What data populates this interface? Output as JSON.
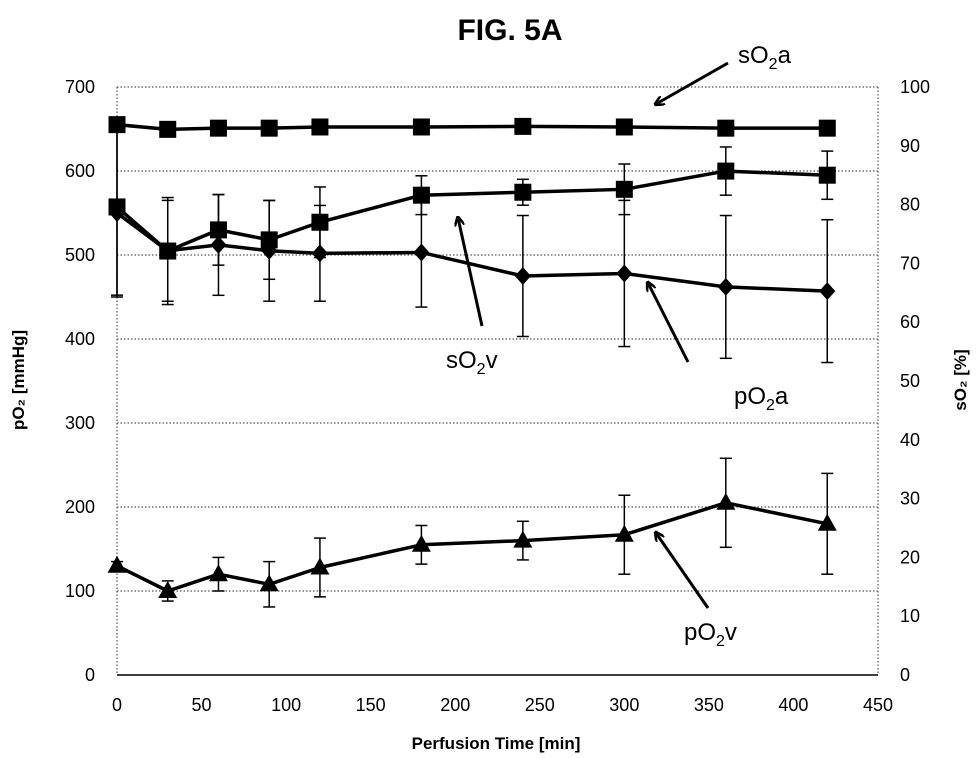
{
  "chart_data": {
    "type": "line",
    "title": "FIG. 5A",
    "xlabel": "Perfusion Time [min]",
    "ylabel_left": "pO₂ [mmHg]",
    "ylabel_right": "sO₂ [%]",
    "xlim": [
      0,
      450
    ],
    "ylim_left": [
      0,
      700
    ],
    "ylim_right": [
      0,
      100
    ],
    "x_ticks": [
      0,
      50,
      100,
      150,
      200,
      250,
      300,
      350,
      400,
      450
    ],
    "y_left_ticks": [
      0,
      100,
      200,
      300,
      400,
      500,
      600,
      700
    ],
    "y_right_ticks": [
      0,
      10,
      20,
      30,
      40,
      50,
      60,
      70,
      80,
      90,
      100
    ],
    "grid": "horizontal-dotted",
    "legend": "none (inline annotations)",
    "series": [
      {
        "name": "sO2a",
        "axis": "right",
        "marker": "square",
        "x": [
          0,
          30,
          60,
          90,
          120,
          180,
          240,
          300,
          360,
          420
        ],
        "y": [
          93.6,
          92.8,
          93.0,
          93.0,
          93.2,
          93.2,
          93.3,
          93.2,
          93.0,
          93.0
        ],
        "err": [
          0.3,
          0.3,
          0.3,
          0.3,
          0.3,
          0.3,
          0.3,
          0.3,
          0.3,
          0.3
        ]
      },
      {
        "name": "sO2v",
        "axis": "right",
        "marker": "square",
        "x": [
          0,
          30,
          60,
          90,
          120,
          180,
          240,
          300,
          360,
          420
        ],
        "y": [
          79.6,
          72.1,
          75.7,
          74.0,
          77.0,
          81.6,
          82.1,
          82.6,
          85.7,
          85.0
        ],
        "err": [
          15.0,
          9.1,
          6.0,
          6.7,
          6.0,
          3.3,
          2.2,
          4.3,
          4.1,
          4.1
        ]
      },
      {
        "name": "pO2a",
        "axis": "left",
        "marker": "diamond",
        "x": [
          0,
          30,
          60,
          90,
          120,
          180,
          240,
          300,
          360,
          420
        ],
        "y": [
          550,
          505,
          512,
          505,
          502,
          503,
          475,
          478,
          462,
          457
        ],
        "err": [
          100,
          60,
          60,
          60,
          57,
          65,
          72,
          87,
          85,
          85
        ]
      },
      {
        "name": "pO2v",
        "axis": "left",
        "marker": "triangle",
        "x": [
          0,
          30,
          60,
          90,
          120,
          180,
          240,
          300,
          360,
          420
        ],
        "y": [
          130,
          100,
          120,
          108,
          128,
          155,
          160,
          167,
          205,
          180
        ],
        "err": [
          5,
          12,
          20,
          27,
          35,
          23,
          23,
          47,
          53,
          60
        ]
      }
    ],
    "annotations": [
      {
        "label_main": "sO",
        "label_sub": "2",
        "label_tail": "a",
        "target": "sO2a"
      },
      {
        "label_main": "sO",
        "label_sub": "2",
        "label_tail": "v",
        "target": "sO2v"
      },
      {
        "label_main": "pO",
        "label_sub": "2",
        "label_tail": "a",
        "target": "pO2a"
      },
      {
        "label_main": "pO",
        "label_sub": "2",
        "label_tail": "v",
        "target": "pO2v"
      }
    ]
  }
}
